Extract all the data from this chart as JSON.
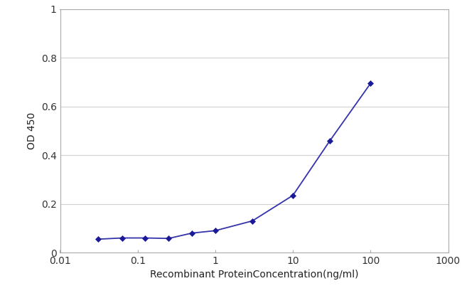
{
  "x_values": [
    0.031,
    0.063,
    0.125,
    0.25,
    0.5,
    1.0,
    3.0,
    10.0,
    30.0,
    100.0
  ],
  "y_values": [
    0.055,
    0.06,
    0.06,
    0.058,
    0.08,
    0.09,
    0.13,
    0.235,
    0.46,
    0.695
  ],
  "xlim": [
    0.01,
    1000
  ],
  "ylim": [
    0,
    1.0
  ],
  "xlabel": "Recombinant ProteinConcentration(ng/ml)",
  "ylabel": "OD 450",
  "line_color": "#3333aa",
  "marker_color": "#1a1a99",
  "marker": "D",
  "marker_size": 4,
  "line_width": 1.3,
  "yticks": [
    0,
    0.2,
    0.4,
    0.6,
    0.8,
    1.0
  ],
  "ytick_labels": [
    "0",
    "0.2",
    "0.4",
    "0.6",
    "0.8",
    "1"
  ],
  "xtick_positions": [
    0.01,
    0.1,
    1,
    10,
    100,
    1000
  ],
  "xtick_labels": [
    "0.01",
    "0.1",
    "1",
    "10",
    "100",
    "1000"
  ],
  "grid_color": "#d0d0d0",
  "background_color": "#ffffff",
  "plot_bg_color": "#ffffff",
  "xlabel_fontsize": 10,
  "ylabel_fontsize": 10,
  "tick_fontsize": 10
}
